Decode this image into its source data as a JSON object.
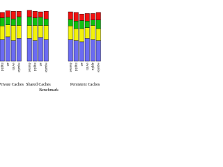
{
  "chart_data": {
    "type": "stacked_bar",
    "xlabel": "Benchmark",
    "ylim": [
      0,
      100
    ],
    "groups": [
      {
        "label": "Private Caches",
        "categories": [
          "mgrid",
          "art",
          "swim",
          "equake"
        ]
      },
      {
        "label": "Shared Caches",
        "categories": [
          "dunnet",
          "mgrid",
          "art",
          "equake"
        ]
      },
      {
        "label": "Persistent Caches",
        "categories": [
          "dunnet",
          "mgrid",
          "art",
          "swim",
          "applu",
          "equake"
        ]
      }
    ],
    "series": [
      {
        "color": "#6b6bf2",
        "values": [
          40,
          45,
          38,
          42,
          42,
          38,
          44,
          40,
          40,
          38,
          36,
          42,
          40,
          38
        ]
      },
      {
        "color": "#f2f20a",
        "values": [
          25,
          22,
          28,
          24,
          24,
          28,
          22,
          26,
          25,
          22,
          24,
          20,
          26,
          22
        ]
      },
      {
        "color": "#10c010",
        "values": [
          15,
          14,
          12,
          16,
          16,
          14,
          15,
          12,
          12,
          14,
          15,
          12,
          10,
          16
        ]
      },
      {
        "color": "#f01010",
        "values": [
          10,
          12,
          14,
          10,
          12,
          12,
          10,
          14,
          14,
          16,
          12,
          14,
          12,
          14
        ]
      }
    ]
  }
}
